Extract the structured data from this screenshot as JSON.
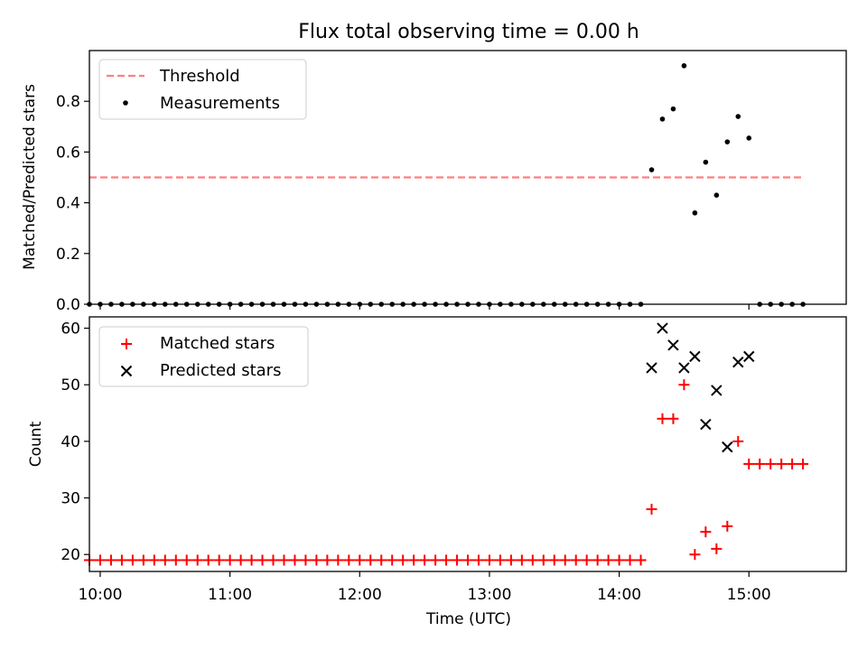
{
  "chart_data": [
    {
      "type": "scatter",
      "title": "Flux total observing time = 0.00 h",
      "xlabel": "",
      "ylabel": "Matched/Predicted stars",
      "ylim": [
        0,
        1.0
      ],
      "yticks": [
        "0.0",
        "0.2",
        "0.4",
        "0.6",
        "0.8"
      ],
      "ytick_values": [
        0,
        0.2,
        0.4,
        0.6,
        0.8
      ],
      "xlim": [
        "09:55",
        "15:45"
      ],
      "xticks_major": [
        "10:00",
        "11:00",
        "12:00",
        "13:00",
        "14:00",
        "15:00"
      ],
      "legend": {
        "placement": "upper-left",
        "entries": [
          "Threshold",
          "Measurements"
        ]
      },
      "threshold": {
        "name": "Threshold",
        "value": 0.5,
        "x_range": [
          "09:55",
          "15:25"
        ],
        "color": "#ff7f7f"
      },
      "series": [
        {
          "name": "Measurements",
          "color": "#000000",
          "x": [
            "09:55",
            "10:00",
            "10:05",
            "10:10",
            "10:15",
            "10:20",
            "10:25",
            "10:30",
            "10:35",
            "10:40",
            "10:45",
            "10:50",
            "10:55",
            "11:00",
            "11:05",
            "11:10",
            "11:15",
            "11:20",
            "11:25",
            "11:30",
            "11:35",
            "11:40",
            "11:45",
            "11:50",
            "11:55",
            "12:00",
            "12:05",
            "12:10",
            "12:15",
            "12:20",
            "12:25",
            "12:30",
            "12:35",
            "12:40",
            "12:45",
            "12:50",
            "12:55",
            "13:00",
            "13:05",
            "13:10",
            "13:15",
            "13:20",
            "13:25",
            "13:30",
            "13:35",
            "13:40",
            "13:45",
            "13:50",
            "13:55",
            "14:00",
            "14:05",
            "14:10",
            "14:15",
            "14:20",
            "14:25",
            "14:30",
            "14:35",
            "14:40",
            "14:45",
            "14:50",
            "14:55",
            "15:00",
            "15:05",
            "15:10",
            "15:15",
            "15:20",
            "15:25"
          ],
          "values": [
            0,
            0,
            0,
            0,
            0,
            0,
            0,
            0,
            0,
            0,
            0,
            0,
            0,
            0,
            0,
            0,
            0,
            0,
            0,
            0,
            0,
            0,
            0,
            0,
            0,
            0,
            0,
            0,
            0,
            0,
            0,
            0,
            0,
            0,
            0,
            0,
            0,
            0,
            0,
            0,
            0,
            0,
            0,
            0,
            0,
            0,
            0,
            0,
            0,
            0,
            0,
            0,
            0.53,
            0.73,
            0.77,
            0.94,
            0.36,
            0.56,
            0.43,
            0.64,
            0.74,
            0.655,
            0,
            0,
            0,
            0,
            0
          ]
        }
      ]
    },
    {
      "type": "scatter",
      "title": "",
      "xlabel": "Time (UTC)",
      "ylabel": "Count",
      "ylim": [
        17,
        62
      ],
      "yticks": [
        "20",
        "30",
        "40",
        "50",
        "60"
      ],
      "ytick_values": [
        20,
        30,
        40,
        50,
        60
      ],
      "xlim": [
        "09:55",
        "15:45"
      ],
      "xticks_major": [
        "10:00",
        "11:00",
        "12:00",
        "13:00",
        "14:00",
        "15:00"
      ],
      "legend": {
        "placement": "upper-left",
        "entries": [
          "Matched stars",
          "Predicted stars"
        ]
      },
      "series": [
        {
          "name": "Matched stars",
          "marker": "plus",
          "color": "#ff0000",
          "x": [
            "09:55",
            "10:00",
            "10:05",
            "10:10",
            "10:15",
            "10:20",
            "10:25",
            "10:30",
            "10:35",
            "10:40",
            "10:45",
            "10:50",
            "10:55",
            "11:00",
            "11:05",
            "11:10",
            "11:15",
            "11:20",
            "11:25",
            "11:30",
            "11:35",
            "11:40",
            "11:45",
            "11:50",
            "11:55",
            "12:00",
            "12:05",
            "12:10",
            "12:15",
            "12:20",
            "12:25",
            "12:30",
            "12:35",
            "12:40",
            "12:45",
            "12:50",
            "12:55",
            "13:00",
            "13:05",
            "13:10",
            "13:15",
            "13:20",
            "13:25",
            "13:30",
            "13:35",
            "13:40",
            "13:45",
            "13:50",
            "13:55",
            "14:00",
            "14:05",
            "14:10",
            "14:15",
            "14:20",
            "14:25",
            "14:30",
            "14:35",
            "14:40",
            "14:45",
            "14:50",
            "14:55",
            "15:00",
            "15:05",
            "15:10",
            "15:15",
            "15:20",
            "15:25"
          ],
          "values": [
            19,
            19,
            19,
            19,
            19,
            19,
            19,
            19,
            19,
            19,
            19,
            19,
            19,
            19,
            19,
            19,
            19,
            19,
            19,
            19,
            19,
            19,
            19,
            19,
            19,
            19,
            19,
            19,
            19,
            19,
            19,
            19,
            19,
            19,
            19,
            19,
            19,
            19,
            19,
            19,
            19,
            19,
            19,
            19,
            19,
            19,
            19,
            19,
            19,
            19,
            19,
            19,
            28,
            44,
            44,
            50,
            20,
            24,
            21,
            25,
            40,
            36,
            36,
            36,
            36,
            36,
            36
          ]
        },
        {
          "name": "Predicted stars",
          "marker": "x",
          "color": "#000000",
          "x": [
            "14:15",
            "14:20",
            "14:25",
            "14:30",
            "14:35",
            "14:40",
            "14:45",
            "14:50",
            "14:55",
            "15:00"
          ],
          "values": [
            53,
            60,
            57,
            53,
            55,
            43,
            49,
            39,
            54,
            55
          ]
        }
      ]
    }
  ]
}
